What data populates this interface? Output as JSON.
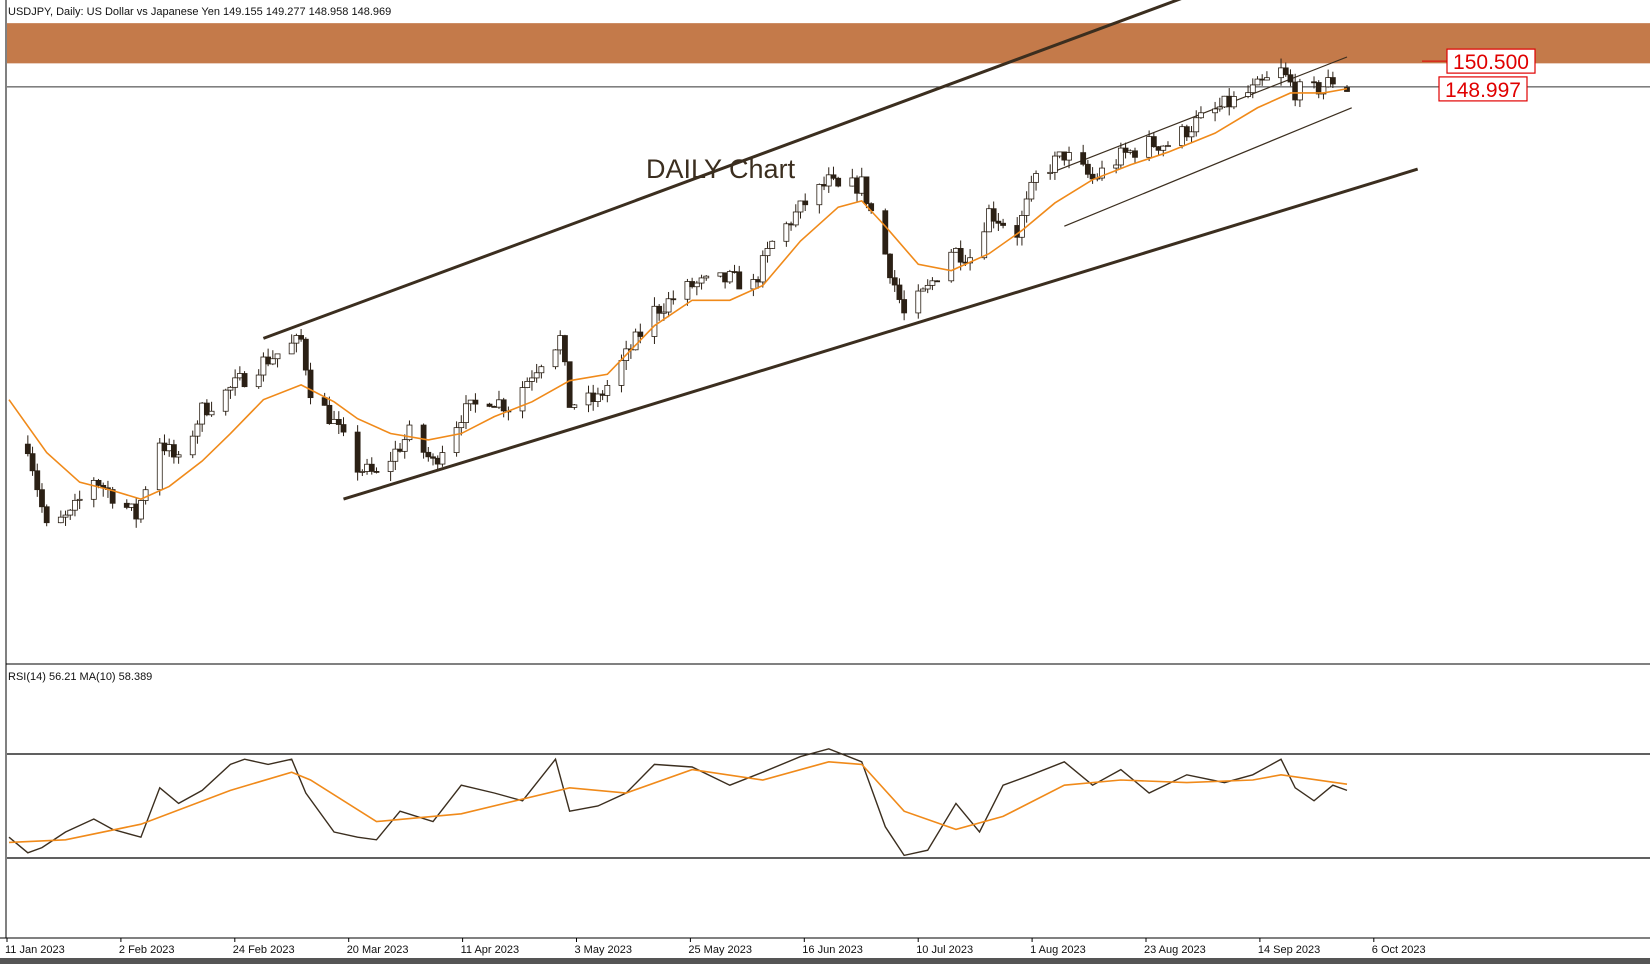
{
  "header": {
    "symbol_info": "USDJPY, Daily:  US Dollar vs Japanese Yen  149.155 149.277 148.958 148.969"
  },
  "annotation": {
    "text": "DAILY Chart"
  },
  "price_labels": [
    {
      "value": "150.500",
      "color": "#e00000"
    },
    {
      "value": "148.997",
      "color": "#e00000"
    }
  ],
  "rsi": {
    "label": "RSI(14) 56.21 MA(10) 58.389"
  },
  "colors": {
    "background": "#ffffff",
    "candle_up": "#ffffff",
    "candle_down": "#2b2015",
    "wick": "#2b2015",
    "ma_line": "#f08a1a",
    "trend_line": "#3b2e1f",
    "resistance_zone": "#c47a4a",
    "rsi_line": "#3b2e1f"
  },
  "chart_data": [
    {
      "type": "candlestick",
      "title": "",
      "x_tick_labels": [
        "11 Jan 2023",
        "2 Feb 2023",
        "24 Feb 2023",
        "20 Mar 2023",
        "11 Apr 2023",
        "3 May 2023",
        "25 May 2023",
        "16 Jun 2023",
        "10 Jul 2023",
        "1 Aug 2023",
        "23 Aug 2023",
        "14 Sep 2023",
        "6 Oct 2023"
      ],
      "ylim": [
        122.0,
        153.2
      ],
      "last_ohlc": {
        "open": 149.155,
        "high": 149.277,
        "low": 148.958,
        "close": 148.969
      },
      "close_path": [
        {
          "d": "2023-01-09",
          "v": 132.3
        },
        {
          "d": "2023-01-13",
          "v": 128.3
        },
        {
          "d": "2023-01-18",
          "v": 128.9
        },
        {
          "d": "2023-01-23",
          "v": 130.7
        },
        {
          "d": "2023-01-27",
          "v": 129.9
        },
        {
          "d": "2023-02-01",
          "v": 128.9
        },
        {
          "d": "2023-02-06",
          "v": 132.5
        },
        {
          "d": "2023-02-10",
          "v": 131.4
        },
        {
          "d": "2023-02-15",
          "v": 133.9
        },
        {
          "d": "2023-02-21",
          "v": 134.9
        },
        {
          "d": "2023-02-28",
          "v": 136.2
        },
        {
          "d": "2023-03-08",
          "v": 137.2
        },
        {
          "d": "2023-03-10",
          "v": 134.9
        },
        {
          "d": "2023-03-15",
          "v": 133.3
        },
        {
          "d": "2023-03-20",
          "v": 131.2
        },
        {
          "d": "2023-03-24",
          "v": 130.8
        },
        {
          "d": "2023-03-31",
          "v": 132.8
        },
        {
          "d": "2023-04-05",
          "v": 131.4
        },
        {
          "d": "2023-04-11",
          "v": 133.7
        },
        {
          "d": "2023-04-17",
          "v": 134.5
        },
        {
          "d": "2023-04-21",
          "v": 134.1
        },
        {
          "d": "2023-04-28",
          "v": 136.3
        },
        {
          "d": "2023-05-02",
          "v": 137.3
        },
        {
          "d": "2023-05-04",
          "v": 134.2
        },
        {
          "d": "2023-05-10",
          "v": 134.4
        },
        {
          "d": "2023-05-15",
          "v": 136.1
        },
        {
          "d": "2023-05-22",
          "v": 138.6
        },
        {
          "d": "2023-05-30",
          "v": 139.8
        },
        {
          "d": "2023-06-02",
          "v": 139.9
        },
        {
          "d": "2023-06-07",
          "v": 140.1
        },
        {
          "d": "2023-06-12",
          "v": 139.8
        },
        {
          "d": "2023-06-16",
          "v": 141.8
        },
        {
          "d": "2023-06-23",
          "v": 143.7
        },
        {
          "d": "2023-06-28",
          "v": 144.7
        },
        {
          "d": "2023-06-30",
          "v": 144.3
        },
        {
          "d": "2023-07-05",
          "v": 144.6
        },
        {
          "d": "2023-07-10",
          "v": 141.3
        },
        {
          "d": "2023-07-14",
          "v": 138.4
        },
        {
          "d": "2023-07-19",
          "v": 139.6
        },
        {
          "d": "2023-07-24",
          "v": 141.5
        },
        {
          "d": "2023-07-28",
          "v": 141.2
        },
        {
          "d": "2023-08-01",
          "v": 143.3
        },
        {
          "d": "2023-08-07",
          "v": 142.3
        },
        {
          "d": "2023-08-11",
          "v": 144.9
        },
        {
          "d": "2023-08-17",
          "v": 146.0
        },
        {
          "d": "2023-08-23",
          "v": 144.8
        },
        {
          "d": "2023-08-29",
          "v": 145.9
        },
        {
          "d": "2023-09-04",
          "v": 146.5
        },
        {
          "d": "2023-09-08",
          "v": 146.5
        },
        {
          "d": "2023-09-14",
          "v": 147.5
        },
        {
          "d": "2023-09-20",
          "v": 148.3
        },
        {
          "d": "2023-09-26",
          "v": 149.0
        },
        {
          "d": "2023-10-02",
          "v": 149.9
        },
        {
          "d": "2023-10-05",
          "v": 149.0
        },
        {
          "d": "2023-10-09",
          "v": 149.0
        },
        {
          "d": "2023-10-13",
          "v": 149.5
        },
        {
          "d": "2023-10-16",
          "v": 149.0
        }
      ],
      "moving_average": [
        {
          "d": "2023-01-05",
          "v": 134.4
        },
        {
          "d": "2023-01-13",
          "v": 131.9
        },
        {
          "d": "2023-01-20",
          "v": 130.5
        },
        {
          "d": "2023-01-27",
          "v": 130.1
        },
        {
          "d": "2023-02-02",
          "v": 129.7
        },
        {
          "d": "2023-02-08",
          "v": 130.3
        },
        {
          "d": "2023-02-15",
          "v": 131.5
        },
        {
          "d": "2023-02-21",
          "v": 132.8
        },
        {
          "d": "2023-02-28",
          "v": 134.4
        },
        {
          "d": "2023-03-08",
          "v": 135.1
        },
        {
          "d": "2023-03-15",
          "v": 134.3
        },
        {
          "d": "2023-03-20",
          "v": 133.5
        },
        {
          "d": "2023-03-27",
          "v": 132.8
        },
        {
          "d": "2023-04-04",
          "v": 132.5
        },
        {
          "d": "2023-04-11",
          "v": 132.8
        },
        {
          "d": "2023-04-18",
          "v": 133.6
        },
        {
          "d": "2023-04-26",
          "v": 134.3
        },
        {
          "d": "2023-05-04",
          "v": 135.3
        },
        {
          "d": "2023-05-12",
          "v": 135.6
        },
        {
          "d": "2023-05-22",
          "v": 137.9
        },
        {
          "d": "2023-05-30",
          "v": 139.1
        },
        {
          "d": "2023-06-07",
          "v": 139.1
        },
        {
          "d": "2023-06-14",
          "v": 139.8
        },
        {
          "d": "2023-06-22",
          "v": 141.9
        },
        {
          "d": "2023-06-30",
          "v": 143.5
        },
        {
          "d": "2023-07-05",
          "v": 143.8
        },
        {
          "d": "2023-07-10",
          "v": 142.6
        },
        {
          "d": "2023-07-17",
          "v": 140.8
        },
        {
          "d": "2023-07-24",
          "v": 140.5
        },
        {
          "d": "2023-08-01",
          "v": 141.3
        },
        {
          "d": "2023-08-08",
          "v": 142.4
        },
        {
          "d": "2023-08-15",
          "v": 143.7
        },
        {
          "d": "2023-08-23",
          "v": 144.8
        },
        {
          "d": "2023-08-31",
          "v": 145.5
        },
        {
          "d": "2023-09-08",
          "v": 146.1
        },
        {
          "d": "2023-09-18",
          "v": 147.0
        },
        {
          "d": "2023-09-27",
          "v": 148.2
        },
        {
          "d": "2023-10-04",
          "v": 148.9
        },
        {
          "d": "2023-10-11",
          "v": 148.9
        },
        {
          "d": "2023-10-16",
          "v": 149.1
        }
      ],
      "price_levels": [
        150.5,
        148.997
      ],
      "resistance_zone": [
        150.3,
        152.2
      ],
      "trend_lines": [
        {
          "from": {
            "d": "2023-02-28",
            "v": 137.3
          },
          "to": {
            "d": "2023-10-31",
            "v": 157.5
          }
        },
        {
          "from": {
            "d": "2023-03-17",
            "v": 129.7
          },
          "to": {
            "d": "2023-10-31",
            "v": 145.3
          }
        },
        {
          "from": {
            "d": "2023-08-15",
            "v": 145.2
          },
          "to": {
            "d": "2023-10-16",
            "v": 150.6
          }
        },
        {
          "from": {
            "d": "2023-08-17",
            "v": 142.6
          },
          "to": {
            "d": "2023-10-17",
            "v": 148.2
          }
        }
      ]
    },
    {
      "type": "line",
      "title": "",
      "ylim": [
        0,
        100
      ],
      "levels": [
        70,
        30
      ],
      "rsi": [
        {
          "d": "2023-01-05",
          "v": 38
        },
        {
          "d": "2023-01-09",
          "v": 32
        },
        {
          "d": "2023-01-12",
          "v": 34
        },
        {
          "d": "2023-01-17",
          "v": 40
        },
        {
          "d": "2023-01-23",
          "v": 45
        },
        {
          "d": "2023-01-27",
          "v": 41
        },
        {
          "d": "2023-02-02",
          "v": 38
        },
        {
          "d": "2023-02-06",
          "v": 57
        },
        {
          "d": "2023-02-10",
          "v": 51
        },
        {
          "d": "2023-02-15",
          "v": 56
        },
        {
          "d": "2023-02-21",
          "v": 66
        },
        {
          "d": "2023-02-24",
          "v": 68
        },
        {
          "d": "2023-03-01",
          "v": 66
        },
        {
          "d": "2023-03-06",
          "v": 68
        },
        {
          "d": "2023-03-09",
          "v": 55
        },
        {
          "d": "2023-03-15",
          "v": 40
        },
        {
          "d": "2023-03-20",
          "v": 38
        },
        {
          "d": "2023-03-24",
          "v": 37
        },
        {
          "d": "2023-03-29",
          "v": 48
        },
        {
          "d": "2023-04-05",
          "v": 44
        },
        {
          "d": "2023-04-11",
          "v": 58
        },
        {
          "d": "2023-04-18",
          "v": 55
        },
        {
          "d": "2023-04-24",
          "v": 52
        },
        {
          "d": "2023-05-01",
          "v": 68
        },
        {
          "d": "2023-05-04",
          "v": 48
        },
        {
          "d": "2023-05-10",
          "v": 50
        },
        {
          "d": "2023-05-16",
          "v": 55
        },
        {
          "d": "2023-05-22",
          "v": 66
        },
        {
          "d": "2023-05-30",
          "v": 65
        },
        {
          "d": "2023-06-07",
          "v": 58
        },
        {
          "d": "2023-06-14",
          "v": 63
        },
        {
          "d": "2023-06-22",
          "v": 69
        },
        {
          "d": "2023-06-28",
          "v": 72
        },
        {
          "d": "2023-07-05",
          "v": 67
        },
        {
          "d": "2023-07-10",
          "v": 42
        },
        {
          "d": "2023-07-14",
          "v": 31
        },
        {
          "d": "2023-07-19",
          "v": 33
        },
        {
          "d": "2023-07-25",
          "v": 51
        },
        {
          "d": "2023-07-30",
          "v": 40
        },
        {
          "d": "2023-08-04",
          "v": 58
        },
        {
          "d": "2023-08-10",
          "v": 62
        },
        {
          "d": "2023-08-17",
          "v": 67
        },
        {
          "d": "2023-08-23",
          "v": 58
        },
        {
          "d": "2023-08-29",
          "v": 64
        },
        {
          "d": "2023-09-04",
          "v": 55
        },
        {
          "d": "2023-09-12",
          "v": 62
        },
        {
          "d": "2023-09-20",
          "v": 59
        },
        {
          "d": "2023-09-26",
          "v": 62
        },
        {
          "d": "2023-10-02",
          "v": 68
        },
        {
          "d": "2023-10-05",
          "v": 57
        },
        {
          "d": "2023-10-09",
          "v": 52
        },
        {
          "d": "2023-10-13",
          "v": 58
        },
        {
          "d": "2023-10-16",
          "v": 56
        }
      ],
      "ma": [
        {
          "d": "2023-01-05",
          "v": 36
        },
        {
          "d": "2023-01-17",
          "v": 37
        },
        {
          "d": "2023-02-02",
          "v": 43
        },
        {
          "d": "2023-02-21",
          "v": 56
        },
        {
          "d": "2023-03-06",
          "v": 63
        },
        {
          "d": "2023-03-10",
          "v": 60
        },
        {
          "d": "2023-03-24",
          "v": 44
        },
        {
          "d": "2023-04-11",
          "v": 47
        },
        {
          "d": "2023-05-04",
          "v": 57
        },
        {
          "d": "2023-05-16",
          "v": 55
        },
        {
          "d": "2023-05-30",
          "v": 64
        },
        {
          "d": "2023-06-14",
          "v": 60
        },
        {
          "d": "2023-06-28",
          "v": 67
        },
        {
          "d": "2023-07-05",
          "v": 66
        },
        {
          "d": "2023-07-14",
          "v": 48
        },
        {
          "d": "2023-07-25",
          "v": 41
        },
        {
          "d": "2023-08-04",
          "v": 46
        },
        {
          "d": "2023-08-17",
          "v": 58
        },
        {
          "d": "2023-08-29",
          "v": 60
        },
        {
          "d": "2023-09-12",
          "v": 59
        },
        {
          "d": "2023-09-26",
          "v": 60
        },
        {
          "d": "2023-10-02",
          "v": 62
        },
        {
          "d": "2023-10-16",
          "v": 58.389
        }
      ]
    }
  ]
}
